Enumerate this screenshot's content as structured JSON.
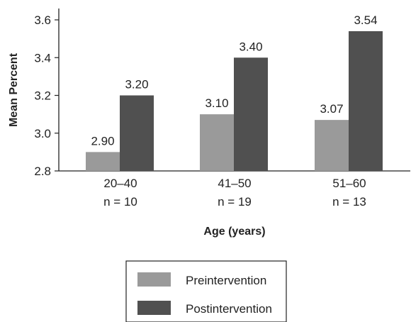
{
  "chart_data": {
    "type": "bar",
    "ylabel": "Mean Percent",
    "xlabel": "Age (years)",
    "ylim": [
      2.8,
      3.6
    ],
    "yticks": [
      "2.8",
      "3.0",
      "3.2",
      "3.4",
      "3.6"
    ],
    "grid": false,
    "legend_position": "bottom",
    "categories": [
      {
        "label": "20–40",
        "sublabel": "n = 10"
      },
      {
        "label": "41–50",
        "sublabel": "n = 19"
      },
      {
        "label": "51–60",
        "sublabel": "n = 13"
      }
    ],
    "series": [
      {
        "name": "Preintervention",
        "color": "#9a9a9a",
        "values": [
          2.9,
          3.1,
          3.07
        ],
        "labels": [
          "2.90",
          "3.10",
          "3.07"
        ]
      },
      {
        "name": "Postintervention",
        "color": "#505050",
        "values": [
          3.2,
          3.4,
          3.54
        ],
        "labels": [
          "3.20",
          "3.40",
          "3.54"
        ]
      }
    ]
  }
}
